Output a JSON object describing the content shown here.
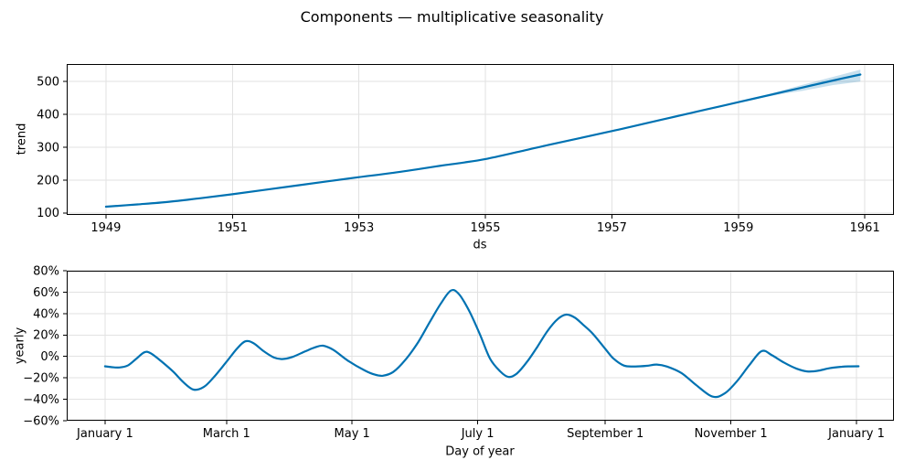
{
  "title": "Components — multiplicative seasonality",
  "colors": {
    "line": "#0072B2",
    "band": "rgba(0,114,178,0.22)",
    "grid": "#e2e2e2",
    "frame": "#000000",
    "tick": "#000000"
  },
  "chart_data": [
    {
      "type": "line",
      "name": "trend",
      "xlabel": "ds",
      "ylabel": "trend",
      "xlim": [
        1948.38,
        1961.46
      ],
      "ylim": [
        94,
        553
      ],
      "grid": true,
      "legend": "none",
      "xticks": [
        {
          "value": 1949,
          "label": "1949"
        },
        {
          "value": 1951,
          "label": "1951"
        },
        {
          "value": 1953,
          "label": "1953"
        },
        {
          "value": 1955,
          "label": "1955"
        },
        {
          "value": 1957,
          "label": "1957"
        },
        {
          "value": 1959,
          "label": "1959"
        },
        {
          "value": 1961,
          "label": "1961"
        }
      ],
      "yticks": [
        {
          "value": 100,
          "label": "100"
        },
        {
          "value": 200,
          "label": "200"
        },
        {
          "value": 300,
          "label": "300"
        },
        {
          "value": 400,
          "label": "400"
        },
        {
          "value": 500,
          "label": "500"
        }
      ],
      "x": [
        1949,
        1949.5,
        1950,
        1950.5,
        1951,
        1951.5,
        1952,
        1952.5,
        1953,
        1953.5,
        1954,
        1954.3,
        1954.65,
        1955,
        1955.5,
        1956,
        1956.5,
        1957,
        1957.5,
        1958,
        1958.5,
        1959,
        1959.5,
        1960,
        1960.5,
        1960.93
      ],
      "y": [
        119,
        126,
        134,
        145,
        157,
        170,
        183,
        196,
        209,
        221,
        235,
        244,
        253,
        264,
        285,
        307,
        328,
        349,
        371,
        393,
        415,
        437,
        459,
        481,
        503,
        521
      ],
      "band": {
        "x": [
          1959,
          1959.25,
          1959.5,
          1959.75,
          1960,
          1960.25,
          1960.5,
          1960.7,
          1960.93
        ],
        "upper": [
          438.5,
          450.5,
          463,
          476,
          489,
          501.5,
          514,
          524,
          536
        ],
        "lower": [
          435.5,
          445.5,
          455,
          464,
          471,
          480,
          489,
          494,
          500
        ]
      }
    },
    {
      "type": "line",
      "name": "yearly",
      "xlabel": "Day of year",
      "ylabel": "yearly",
      "xlim": [
        -18.6,
        383.2
      ],
      "ylim": [
        -60,
        80
      ],
      "grid": true,
      "legend": "none",
      "xticks": [
        {
          "value": 0,
          "label": "January 1"
        },
        {
          "value": 59,
          "label": "March 1"
        },
        {
          "value": 120,
          "label": "May 1"
        },
        {
          "value": 181,
          "label": "July 1"
        },
        {
          "value": 243,
          "label": "September 1"
        },
        {
          "value": 304,
          "label": "November 1"
        },
        {
          "value": 365,
          "label": "January 1"
        }
      ],
      "yticks": [
        {
          "value": 80,
          "label": "80%"
        },
        {
          "value": 60,
          "label": "60%"
        },
        {
          "value": 40,
          "label": "40%"
        },
        {
          "value": 20,
          "label": "20%"
        },
        {
          "value": 0,
          "label": "0%"
        },
        {
          "value": -20,
          "label": "−20%"
        },
        {
          "value": -40,
          "label": "−40%"
        },
        {
          "value": -60,
          "label": "−60%"
        }
      ],
      "x": [
        0,
        3,
        7,
        11,
        15,
        19,
        22,
        27,
        33,
        38,
        43,
        48,
        53,
        59,
        64,
        68,
        72,
        77,
        82,
        86,
        91,
        97,
        102,
        106,
        111,
        118,
        126,
        131,
        135,
        140,
        146,
        152,
        158,
        163,
        168,
        172,
        177,
        182,
        187,
        192,
        196,
        200,
        205,
        210,
        215,
        220,
        224,
        228,
        232,
        237,
        243,
        247,
        252,
        257,
        263,
        268,
        273,
        280,
        287,
        295,
        301,
        307,
        313,
        319,
        324,
        330,
        336,
        341,
        346,
        352,
        358,
        362,
        366
      ],
      "y": [
        -9.2,
        -10,
        -10.3,
        -8.5,
        -2.5,
        3.8,
        3.2,
        -4,
        -14,
        -24,
        -31,
        -28.5,
        -19,
        -5,
        7,
        14,
        12.5,
        5,
        -1,
        -2.5,
        -0.5,
        4.5,
        8.5,
        10,
        6,
        -4,
        -13,
        -17,
        -18,
        -14.5,
        -3,
        13,
        33,
        49,
        61.5,
        58,
        42,
        21,
        -2,
        -14,
        -19.2,
        -16,
        -5,
        9,
        24,
        35,
        39,
        36.5,
        30,
        21,
        7,
        -2,
        -8.5,
        -9.4,
        -8.8,
        -7.6,
        -9.5,
        -15.5,
        -26.5,
        -37.5,
        -34.5,
        -23,
        -8,
        5,
        1,
        -6,
        -11.5,
        -14,
        -13.5,
        -11,
        -9.6,
        -9.3,
        -9.2
      ]
    }
  ]
}
